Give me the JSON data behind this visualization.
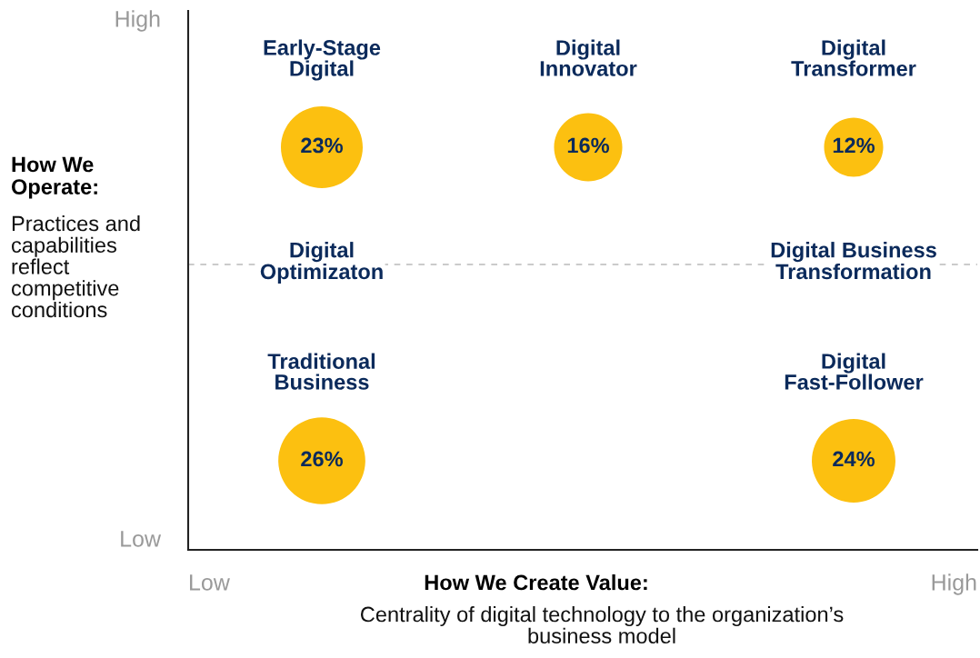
{
  "chart_data": {
    "type": "other",
    "xlabel": "How We Create Value:",
    "ylabel": "How We Operate:",
    "categories": [
      "Early-Stage\nDigital",
      "Digital\nInnovator",
      "Digital\nTransformer",
      "Traditional\nBusiness",
      "Digital\nFast-Follower"
    ],
    "values": [
      23,
      16,
      12,
      26,
      24
    ],
    "value_labels": [
      "23%",
      "16%",
      "12%",
      "26%",
      "24%"
    ],
    "color": "#fcc010",
    "ref_lines": [
      {
        "axis": "y",
        "color": "#bbbbbb",
        "line_style": "dashed"
      }
    ],
    "annotations": [
      "Practices and capabilities reflect competitive conditions",
      "Centrality of digital technology to the organization’s business model",
      "High",
      "Low",
      "Low",
      "High",
      "Digital\nOptimizaton",
      "Digital Business\nTransformation"
    ]
  }
}
